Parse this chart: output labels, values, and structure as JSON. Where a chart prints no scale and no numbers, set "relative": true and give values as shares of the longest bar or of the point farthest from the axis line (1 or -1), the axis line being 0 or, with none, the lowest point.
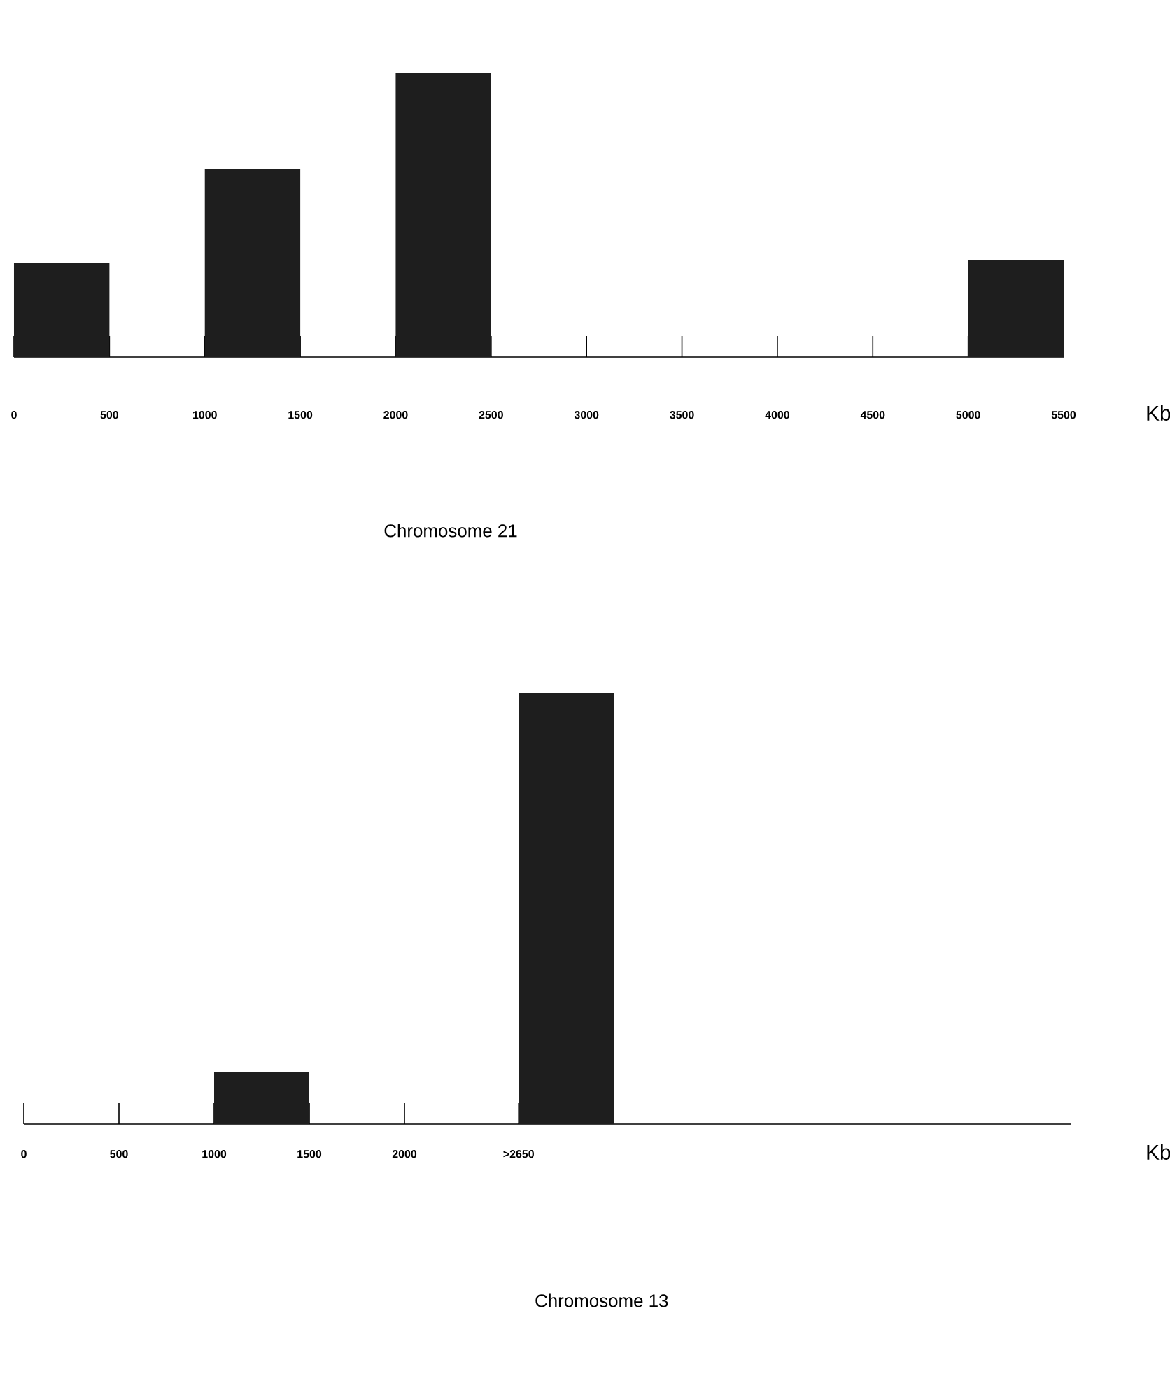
{
  "chart_data": [
    {
      "type": "bar",
      "title": "Chromosome 21",
      "xlabel": "Kb",
      "relative": true,
      "color": "#1e1e1e",
      "x": [
        250,
        1250,
        2250,
        5250
      ],
      "values": [
        0.33,
        0.66,
        1,
        0.34
      ],
      "xlim": [
        0,
        5500
      ],
      "xticks": [
        0,
        500,
        1000,
        1500,
        2000,
        2500,
        3000,
        3500,
        4000,
        4500,
        5000,
        5500
      ]
    },
    {
      "type": "bar",
      "title": "Chromosome 13",
      "xlabel": "Kb",
      "relative": true,
      "color": "#1e1e1e",
      "x": [
        1250,
        2850
      ],
      "values": [
        0.12,
        1
      ],
      "xlim": [
        0,
        5500
      ],
      "xticks": [
        0,
        500,
        1000,
        1500,
        2000,
        {
          "value": 2600,
          "label": ">2650"
        }
      ]
    }
  ]
}
